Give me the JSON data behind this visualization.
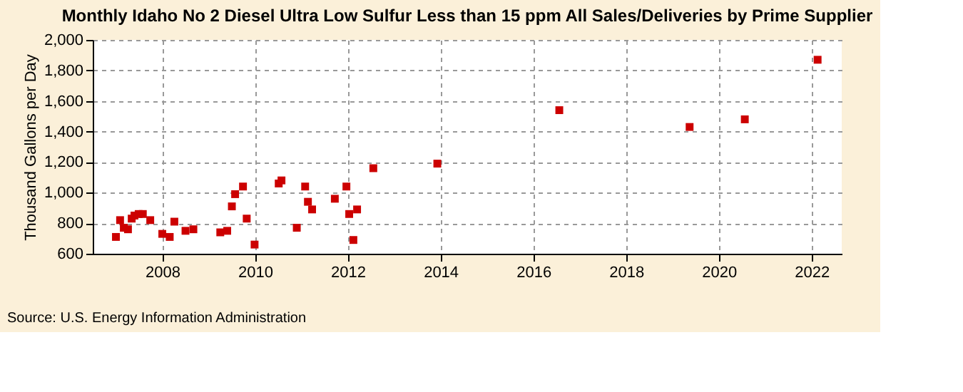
{
  "chart_data": {
    "type": "scatter",
    "title": "Monthly Idaho No 2 Diesel Ultra Low Sulfur Less than 15 ppm All Sales/Deliveries by Prime Supplier",
    "ylabel": "Thousand Gallons per Day",
    "x": [
      2007.0,
      2007.09,
      2007.17,
      2007.26,
      2007.34,
      2007.4,
      2007.49,
      2007.58,
      2007.74,
      2008.0,
      2008.16,
      2008.26,
      2008.5,
      2008.67,
      2009.25,
      2009.4,
      2009.5,
      2009.57,
      2009.74,
      2009.82,
      2009.99,
      2010.51,
      2010.57,
      2010.9,
      2011.08,
      2011.14,
      2011.23,
      2011.72,
      2011.97,
      2012.03,
      2012.12,
      2012.2,
      2012.55,
      2013.93,
      2016.56,
      2019.37,
      2020.56,
      2022.13
    ],
    "series": [
      {
        "color": "#cc0000",
        "values": [
          710,
          820,
          770,
          760,
          830,
          850,
          860,
          860,
          820,
          730,
          710,
          810,
          750,
          760,
          740,
          750,
          910,
          990,
          1040,
          830,
          660,
          1060,
          1080,
          770,
          1040,
          940,
          890,
          960,
          1040,
          860,
          690,
          890,
          1160,
          1190,
          1540,
          1430,
          1480,
          1870
        ]
      }
    ],
    "xlim": [
      2006.5,
      2022.65
    ],
    "xticks": [
      2008,
      2010,
      2012,
      2014,
      2016,
      2018,
      2020,
      2022
    ],
    "ylim": [
      600,
      2000
    ],
    "yticks": [
      {
        "value": 600,
        "label": "600"
      },
      {
        "value": 800,
        "label": "800"
      },
      {
        "value": 1000,
        "label": "1,000"
      },
      {
        "value": 1200,
        "label": "1,200"
      },
      {
        "value": 1400,
        "label": "1,400"
      },
      {
        "value": 1600,
        "label": "1,600"
      },
      {
        "value": 1800,
        "label": "1,800"
      },
      {
        "value": 2000,
        "label": "2,000"
      }
    ],
    "grid": true,
    "marker": "square",
    "annotations": [
      "Source: U.S. Energy Information Administration"
    ]
  }
}
